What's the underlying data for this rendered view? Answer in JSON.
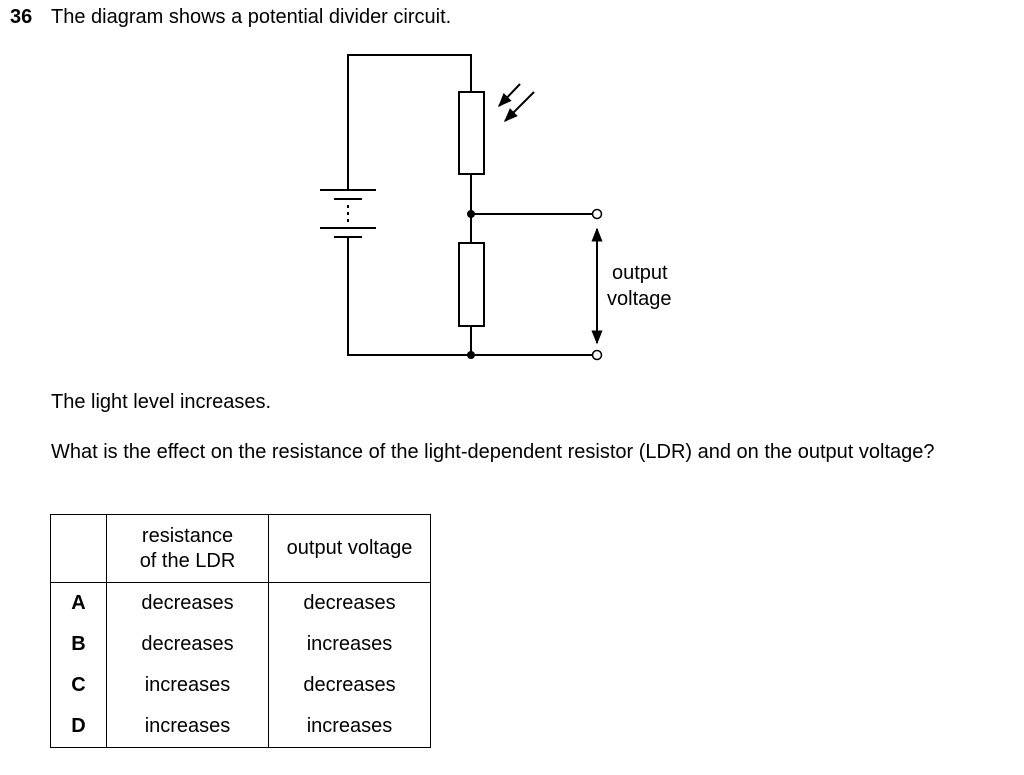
{
  "question": {
    "number": "36",
    "intro": "The diagram shows a potential divider circuit.",
    "statement": "The light level increases.",
    "prompt": "What is the effect on the resistance of the light-dependent resistor (LDR) and on the output voltage?"
  },
  "diagram": {
    "output_label_line1": "output",
    "output_label_line2": "voltage"
  },
  "table": {
    "header": {
      "col1_line1": "resistance",
      "col1_line2": "of the LDR",
      "col2": "output voltage"
    },
    "rows": [
      {
        "letter": "A",
        "ldr": "decreases",
        "output": "decreases"
      },
      {
        "letter": "B",
        "ldr": "decreases",
        "output": "increases"
      },
      {
        "letter": "C",
        "ldr": "increases",
        "output": "decreases"
      },
      {
        "letter": "D",
        "ldr": "increases",
        "output": "increases"
      }
    ]
  }
}
